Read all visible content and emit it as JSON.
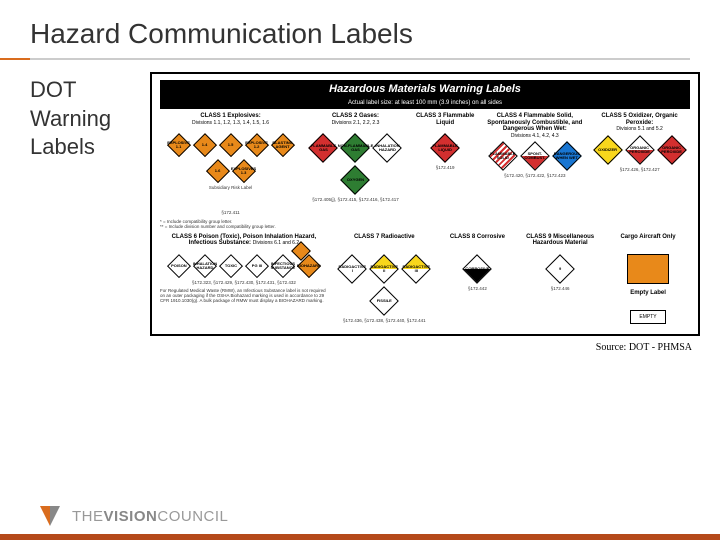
{
  "title": "Hazard Communication Labels",
  "side_label_1": "DOT",
  "side_label_2": "Warning",
  "side_label_3": "Labels",
  "chart": {
    "main_title": "Hazardous Materials Warning Labels",
    "subtitle": "Actual label size: at least 100 mm (3.9 inches) on all sides",
    "row1": {
      "c1": {
        "header": "CLASS 1 Explosives:",
        "sub": "Divisions 1.1, 1.2, 1.3, 1.4, 1.5, 1.6",
        "placards": [
          {
            "color": "orange",
            "label": "EXPLOSIVE\\n1.1"
          },
          {
            "color": "orange",
            "label": "1.4"
          },
          {
            "color": "orange",
            "label": "1.5"
          },
          {
            "color": "orange",
            "label": "EXPLOSIVE\\n1.2"
          },
          {
            "color": "orange",
            "label": "BLASTING\\nAGENT"
          },
          {
            "color": "orange",
            "label": "1.6"
          },
          {
            "color": "orange",
            "label": "EXPLOSIVES\\n1.3"
          }
        ],
        "sublabel": "Subsidiary Risk Label",
        "ref": "§172.411"
      },
      "c2": {
        "header": "CLASS 2 Gases:",
        "sub": "Divisions 2.1, 2.2, 2.3",
        "placards": [
          {
            "color": "red",
            "label": "FLAMMABLE\\nGAS"
          },
          {
            "color": "green",
            "label": "NON-FLAMMABLE\\nGAS"
          },
          {
            "color": "white",
            "label": "INHALATION\\nHAZARD"
          },
          {
            "color": "green",
            "label": "OXYGEN"
          }
        ],
        "ref": "§172.405(j), §172.415, §172.416, §172.417"
      },
      "c3": {
        "header": "CLASS 3 Flammable Liquid",
        "sub": "",
        "placards": [
          {
            "color": "red",
            "label": "FLAMMABLE\\nLIQUID"
          }
        ],
        "ref": "§172.419"
      },
      "c4": {
        "header": "CLASS 4 Flammable Solid, Spontaneously Combustible, and Dangerous When Wet:",
        "sub": "Divisions 4.1, 4.2, 4.3",
        "placards": [
          {
            "color": "stripe",
            "label": "FLAMMABLE\\nSOLID"
          },
          {
            "color": "half-wr",
            "label": "SPONT.\\nCOMBUST."
          },
          {
            "color": "blue",
            "label": "DANGEROUS\\nWHEN WET"
          }
        ],
        "ref": "§172.420, §172.422, §172.423"
      },
      "c5": {
        "header": "CLASS 5 Oxidizer, Organic Peroxide:",
        "sub": "Divisions 5.1 and 5.2",
        "placards": [
          {
            "color": "yellow",
            "label": "OXIDIZER"
          },
          {
            "color": "half-wr",
            "label": "ORGANIC\\nPEROXIDE"
          },
          {
            "color": "red",
            "label": "ORGANIC\\nPEROXIDE"
          }
        ],
        "ref": "§172.426, §172.427"
      }
    },
    "row1_footnotes": "* = Include compatibility group letter.\n** = Include division number and compatibility group letter.",
    "row2": {
      "c6": {
        "header": "CLASS 6 Poison (Toxic), Poison Inhalation Hazard, Infectious Substance:",
        "sub": "Divisions 6.1 and 6.2",
        "placards": [
          {
            "color": "white",
            "label": "POISON"
          },
          {
            "color": "white",
            "label": "INHALATION\\nHAZARD"
          },
          {
            "color": "white",
            "label": "TOXIC"
          },
          {
            "color": "white",
            "label": "PG III"
          },
          {
            "color": "white",
            "label": "INFECTIOUS\\nSUBSTANCE"
          },
          {
            "color": "orange",
            "label": "BIOHAZARD"
          }
        ],
        "ref": "§172.323, §172.429, §172.430, §172.431, §172.432",
        "note": "For Regulated Medical Waste (RMW), an Infectious Substance label is not required on an outer packaging if the OSHA Biohazard marking is used in accordance to 29 CFR 1910.1030(g). A bulk package of RMW must display a BIOHAZARD marking."
      },
      "c7": {
        "header": "CLASS 7 Radioactive",
        "sub": "",
        "placards": [
          {
            "color": "white",
            "label": "RADIOACTIVE\\nI"
          },
          {
            "color": "half-yw",
            "label": "RADIOACTIVE\\nII"
          },
          {
            "color": "half-yw",
            "label": "RADIOACTIVE\\nIII"
          },
          {
            "color": "white",
            "label": "FISSILE"
          }
        ],
        "ref": "§172.436, §172.438, §172.440, §172.441"
      },
      "c8": {
        "header": "CLASS 8 Corrosive",
        "sub": "",
        "placards": [
          {
            "color": "half-bw",
            "label": "CORROSIVE"
          }
        ],
        "ref": "§172.442"
      },
      "c9": {
        "header": "CLASS 9 Miscellaneous Hazardous Material",
        "sub": "",
        "placards": [
          {
            "color": "white",
            "label": "9"
          }
        ],
        "ref": "§172.446"
      },
      "cargo": {
        "header": "Cargo Aircraft Only",
        "empty_header": "Empty Label",
        "empty_text": "EMPTY"
      }
    }
  },
  "source": "Source: DOT - PHMSA",
  "footer": {
    "brand_the": "THE",
    "brand_vision": "VISION",
    "brand_council": "COUNCIL",
    "logo_color_1": "#d96c1e",
    "logo_color_2": "#888888"
  },
  "colors": {
    "title_text": "#333333",
    "underline": "#cccccc",
    "underline_accent": "#d96c1e",
    "footer_bar": "#b54a1a",
    "diamond_orange": "#e8891a",
    "diamond_red": "#d32f2f",
    "diamond_green": "#2e7d32",
    "diamond_yellow": "#f9d71c",
    "diamond_blue": "#1976d2"
  }
}
